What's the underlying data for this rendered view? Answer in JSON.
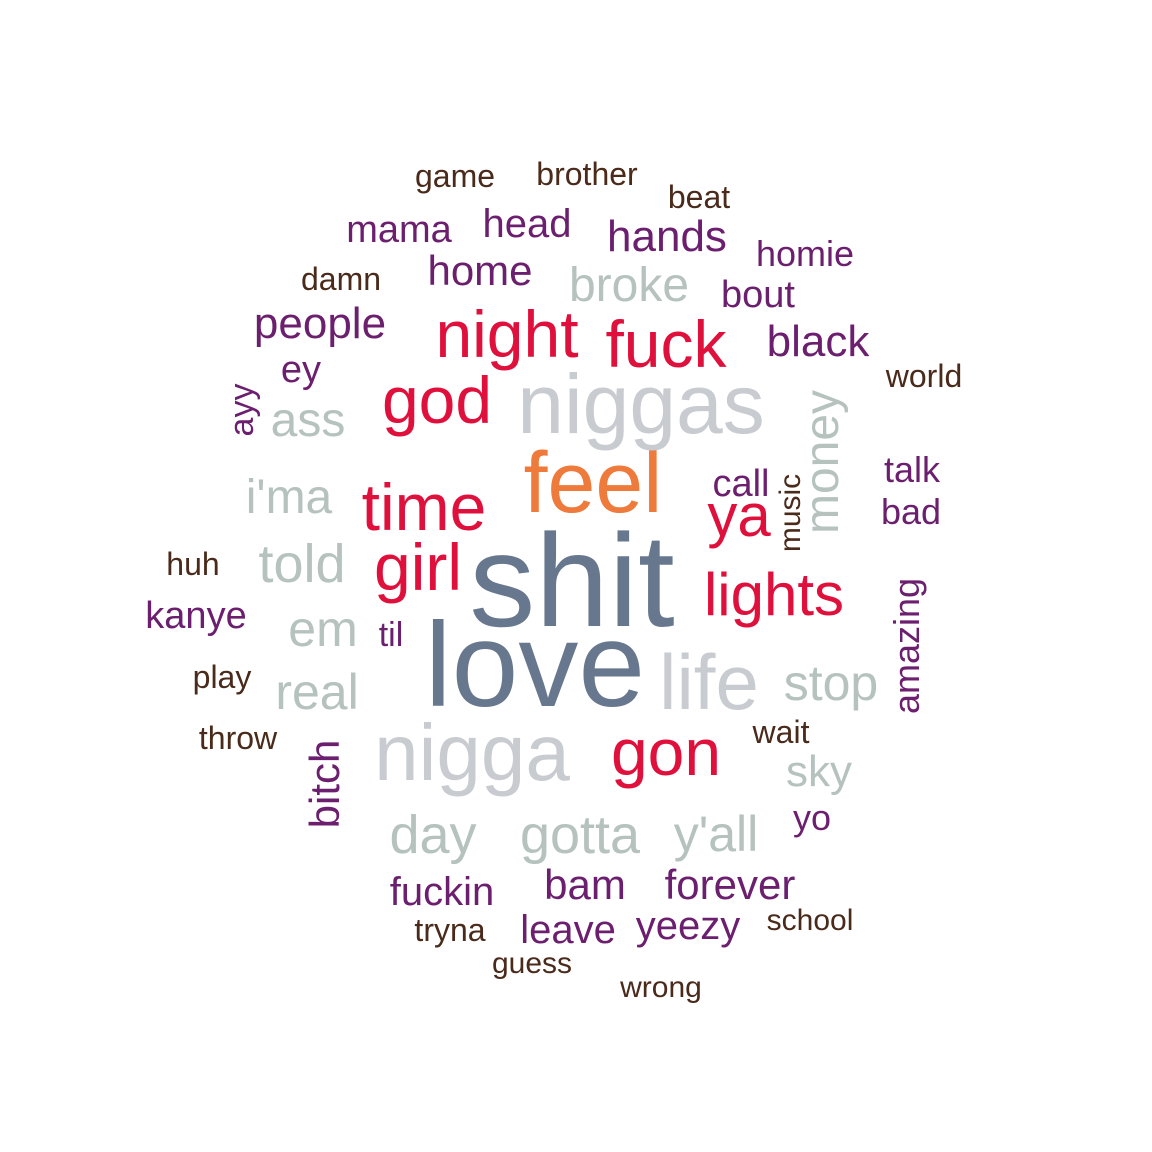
{
  "colors": {
    "brown": "#4a2a1a",
    "purple": "#6b1f6e",
    "red": "#e0103c",
    "gray": "#c8cbd0",
    "sage": "#b5c2bd",
    "slate": "#67778e",
    "orange": "#ee7b3b"
  },
  "chart_data": {
    "type": "wordcloud",
    "words": [
      {
        "text": "shit",
        "weight": 100,
        "color": "slate"
      },
      {
        "text": "love",
        "weight": 98,
        "color": "slate"
      },
      {
        "text": "feel",
        "weight": 80,
        "color": "orange"
      },
      {
        "text": "niggas",
        "weight": 78,
        "color": "gray"
      },
      {
        "text": "nigga",
        "weight": 76,
        "color": "gray"
      },
      {
        "text": "life",
        "weight": 72,
        "color": "gray"
      },
      {
        "text": "night",
        "weight": 62,
        "color": "red"
      },
      {
        "text": "time",
        "weight": 62,
        "color": "red"
      },
      {
        "text": "girl",
        "weight": 62,
        "color": "red"
      },
      {
        "text": "god",
        "weight": 62,
        "color": "red"
      },
      {
        "text": "gon",
        "weight": 62,
        "color": "red"
      },
      {
        "text": "fuck",
        "weight": 60,
        "color": "red"
      },
      {
        "text": "lights",
        "weight": 56,
        "color": "red"
      },
      {
        "text": "ya",
        "weight": 56,
        "color": "red"
      },
      {
        "text": "gotta",
        "weight": 50,
        "color": "sage"
      },
      {
        "text": "day",
        "weight": 50,
        "color": "sage"
      },
      {
        "text": "told",
        "weight": 50,
        "color": "sage"
      },
      {
        "text": "y'all",
        "weight": 46,
        "color": "sage"
      },
      {
        "text": "real",
        "weight": 46,
        "color": "sage"
      },
      {
        "text": "stop",
        "weight": 46,
        "color": "sage"
      },
      {
        "text": "em",
        "weight": 46,
        "color": "sage"
      },
      {
        "text": "money",
        "weight": 44,
        "color": "sage"
      },
      {
        "text": "i'ma",
        "weight": 44,
        "color": "sage"
      },
      {
        "text": "ass",
        "weight": 44,
        "color": "sage"
      },
      {
        "text": "broke",
        "weight": 44,
        "color": "sage"
      },
      {
        "text": "sky",
        "weight": 42,
        "color": "sage"
      },
      {
        "text": "black",
        "weight": 40,
        "color": "purple"
      },
      {
        "text": "people",
        "weight": 40,
        "color": "purple"
      },
      {
        "text": "hands",
        "weight": 40,
        "color": "purple"
      },
      {
        "text": "forever",
        "weight": 38,
        "color": "purple"
      },
      {
        "text": "bam",
        "weight": 38,
        "color": "purple"
      },
      {
        "text": "bitch",
        "weight": 38,
        "color": "purple"
      },
      {
        "text": "home",
        "weight": 38,
        "color": "purple"
      },
      {
        "text": "head",
        "weight": 36,
        "color": "purple"
      },
      {
        "text": "fuckin",
        "weight": 36,
        "color": "purple"
      },
      {
        "text": "leave",
        "weight": 36,
        "color": "purple"
      },
      {
        "text": "yeezy",
        "weight": 36,
        "color": "purple"
      },
      {
        "text": "mama",
        "weight": 34,
        "color": "purple"
      },
      {
        "text": "kanye",
        "weight": 34,
        "color": "purple"
      },
      {
        "text": "call",
        "weight": 34,
        "color": "purple"
      },
      {
        "text": "ey",
        "weight": 34,
        "color": "purple"
      },
      {
        "text": "bout",
        "weight": 34,
        "color": "purple"
      },
      {
        "text": "homie",
        "weight": 32,
        "color": "purple"
      },
      {
        "text": "bad",
        "weight": 32,
        "color": "purple"
      },
      {
        "text": "yo",
        "weight": 32,
        "color": "purple"
      },
      {
        "text": "amazing",
        "weight": 32,
        "color": "purple"
      },
      {
        "text": "talk",
        "weight": 30,
        "color": "purple"
      },
      {
        "text": "ayy",
        "weight": 30,
        "color": "purple"
      },
      {
        "text": "til",
        "weight": 30,
        "color": "purple"
      },
      {
        "text": "damn",
        "weight": 30,
        "color": "brown"
      },
      {
        "text": "throw",
        "weight": 30,
        "color": "brown"
      },
      {
        "text": "wait",
        "weight": 30,
        "color": "brown"
      },
      {
        "text": "play",
        "weight": 30,
        "color": "brown"
      },
      {
        "text": "beat",
        "weight": 28,
        "color": "brown"
      },
      {
        "text": "huh",
        "weight": 28,
        "color": "brown"
      },
      {
        "text": "tryna",
        "weight": 28,
        "color": "brown"
      },
      {
        "text": "brother",
        "weight": 28,
        "color": "brown"
      },
      {
        "text": "game",
        "weight": 28,
        "color": "brown"
      },
      {
        "text": "world",
        "weight": 28,
        "color": "brown"
      },
      {
        "text": "music",
        "weight": 28,
        "color": "brown"
      },
      {
        "text": "school",
        "weight": 28,
        "color": "brown"
      },
      {
        "text": "guess",
        "weight": 28,
        "color": "brown"
      },
      {
        "text": "wrong",
        "weight": 28,
        "color": "brown"
      }
    ]
  }
}
